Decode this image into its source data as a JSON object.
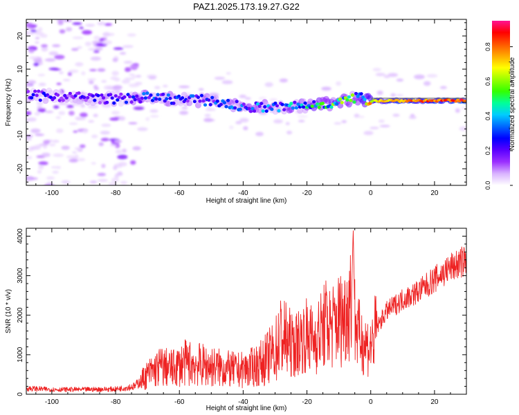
{
  "title": "PAZ1.2025.173.19.27.G22",
  "colorbar": {
    "label": "Normalized spectral amplitude",
    "ticks": [
      "0.0",
      "0.2",
      "0.4",
      "0.6",
      "0.8"
    ],
    "range": [
      0,
      0.95
    ],
    "colors": [
      "#ffffff",
      "#d9b3ff",
      "#9b30ff",
      "#5a00ff",
      "#0000ff",
      "#0066ff",
      "#00ccff",
      "#00ff99",
      "#33ff00",
      "#99ff00",
      "#ffff00",
      "#ffaa00",
      "#ff5500",
      "#ff0000",
      "#ff1493"
    ]
  },
  "chart_data": [
    {
      "type": "heatmap",
      "title": "",
      "xlabel": "Height of straight line (km)",
      "ylabel": "Frequency (Hz)",
      "xlim": [
        -108,
        30
      ],
      "ylim": [
        -25,
        25
      ],
      "xticks": [
        "-100",
        "-80",
        "-60",
        "-40",
        "-20",
        "0",
        "20"
      ],
      "yticks": [
        "-20",
        "-10",
        "0",
        "10",
        "20"
      ],
      "ridge": [
        {
          "x": -108,
          "freq": 2.0,
          "amp": 0.25
        },
        {
          "x": -100,
          "freq": 2.0,
          "amp": 0.22
        },
        {
          "x": -90,
          "freq": 1.5,
          "amp": 0.22
        },
        {
          "x": -80,
          "freq": 1.0,
          "amp": 0.25
        },
        {
          "x": -72,
          "freq": 1.5,
          "amp": 0.3
        },
        {
          "x": -60,
          "freq": 1.0,
          "amp": 0.3
        },
        {
          "x": -50,
          "freq": 0.5,
          "amp": 0.3
        },
        {
          "x": -40,
          "freq": -1.5,
          "amp": 0.35
        },
        {
          "x": -30,
          "freq": -1.5,
          "amp": 0.35
        },
        {
          "x": -20,
          "freq": -1.0,
          "amp": 0.45
        },
        {
          "x": -10,
          "freq": 0.0,
          "amp": 0.55
        },
        {
          "x": -4,
          "freq": 1.5,
          "amp": 0.5
        },
        {
          "x": 0,
          "freq": 0.5,
          "amp": 0.7
        },
        {
          "x": 10,
          "freq": 0.5,
          "amp": 0.8
        },
        {
          "x": 20,
          "freq": 0.5,
          "amp": 0.85
        },
        {
          "x": 30,
          "freq": 0.5,
          "amp": 0.9
        }
      ]
    },
    {
      "type": "line",
      "title": "",
      "xlabel": "Height of straight line (km)",
      "ylabel": "SNR (10 * v/v)",
      "xlim": [
        -108,
        30
      ],
      "ylim": [
        0,
        4200
      ],
      "xticks": [
        "-100",
        "-80",
        "-60",
        "-40",
        "-20",
        "0",
        "20"
      ],
      "yticks": [
        "0",
        "1000",
        "2000",
        "3000",
        "4000"
      ],
      "series": [
        {
          "color": "#ee2222",
          "x": [
            -108,
            -100,
            -90,
            -80,
            -74,
            -70,
            -66,
            -62,
            -58,
            -54,
            -50,
            -46,
            -42,
            -38,
            -34,
            -30,
            -28,
            -26,
            -24,
            -22,
            -20,
            -18,
            -16,
            -14,
            -12,
            -10,
            -8,
            -7,
            -6,
            -5.5,
            -5,
            -4,
            -2,
            0,
            2,
            5,
            10,
            15,
            20,
            25,
            30
          ],
          "y": [
            150,
            120,
            120,
            130,
            200,
            500,
            700,
            650,
            800,
            750,
            700,
            650,
            600,
            650,
            800,
            1100,
            1500,
            1300,
            1200,
            1400,
            1500,
            1350,
            1550,
            1800,
            1700,
            1900,
            2000,
            2300,
            2500,
            4200,
            2000,
            1500,
            1300,
            1200,
            1700,
            2100,
            2400,
            2600,
            2900,
            3200,
            3400
          ]
        }
      ]
    }
  ]
}
